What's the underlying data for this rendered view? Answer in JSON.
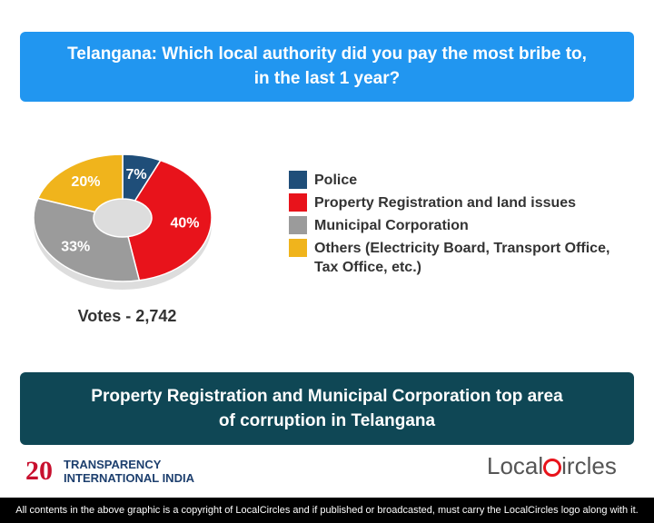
{
  "header": {
    "title_lines": [
      "Telangana: Which local authority did you pay the most bribe to,",
      "in the last 1 year?"
    ]
  },
  "chart_data": {
    "type": "pie",
    "donut": true,
    "categories": [
      "Police",
      "Property Registration and land issues",
      "Municipal Corporation",
      "Others (Electricity Board, Transport Office, Tax Office, etc.)"
    ],
    "values": [
      7,
      40,
      33,
      20
    ],
    "value_labels": [
      "7%",
      "40%",
      "33%",
      "20%"
    ],
    "colors": [
      "#1f4e79",
      "#e8131b",
      "#9b9b9b",
      "#f0b41c"
    ],
    "votes_label": "Votes - 2,742"
  },
  "conclusion": {
    "lines": [
      "Property Registration and Municipal Corporation top area",
      "of corruption in Telangana"
    ]
  },
  "logos": {
    "ti_badge": "20",
    "ti_name_lines": [
      "TRANSPARENCY",
      "INTERNATIONAL INDIA"
    ],
    "localcircles_prefix": "Local",
    "localcircles_suffix": "ircles"
  },
  "footer": "All contents in the above graphic is a copyright of LocalCircles and if published or broadcasted, must carry the LocalCircles logo along with it."
}
